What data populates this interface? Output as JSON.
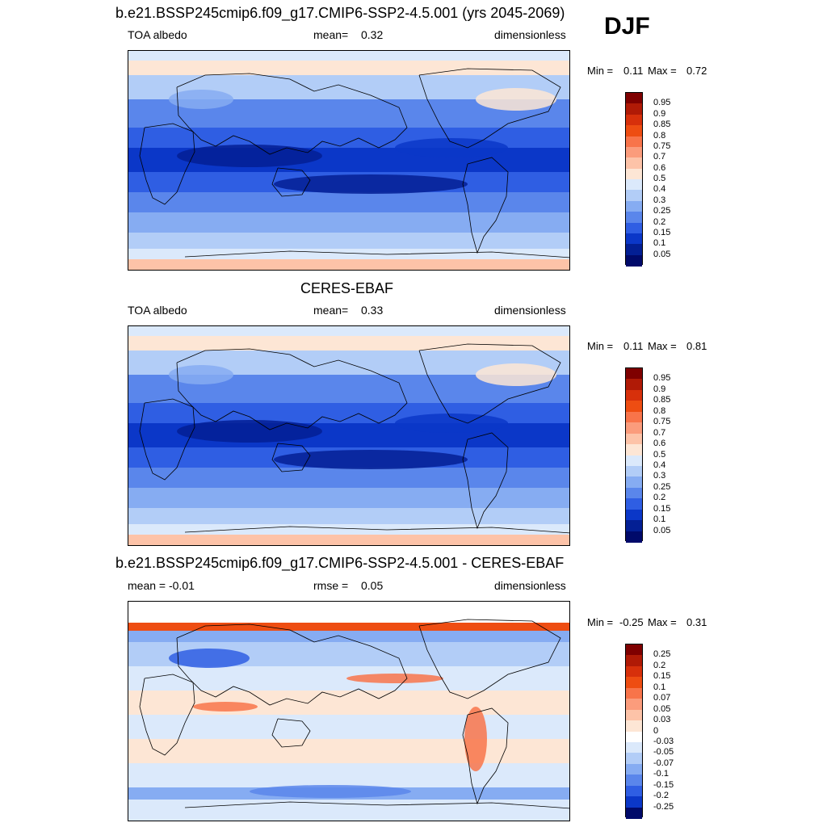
{
  "season": "DJF",
  "panels": [
    {
      "title": "b.e21.BSSP245cmip6.f09_g17.CMIP6-SSP2-4.5.001 (yrs 2045-2069)",
      "left": "TOA albedo",
      "center_label": "mean=",
      "center_value": "0.32",
      "right": "dimensionless",
      "min_label": "Min =",
      "min": "0.11",
      "max_label": "Max =",
      "max": "0.72"
    },
    {
      "title": "CERES-EBAF",
      "left": "TOA albedo",
      "center_label": "mean=",
      "center_value": "0.33",
      "right": "dimensionless",
      "min_label": "Min =",
      "min": "0.11",
      "max_label": "Max =",
      "max": "0.81"
    },
    {
      "title": "b.e21.BSSP245cmip6.f09_g17.CMIP6-SSP2-4.5.001 - CERES-EBAF",
      "left": "mean =  -0.01",
      "center_label": "rmse =",
      "center_value": "0.05",
      "right": "dimensionless",
      "min_label": "Min =",
      "min": "-0.25",
      "max_label": "Max =",
      "max": "0.31"
    }
  ],
  "chart_data": [
    {
      "type": "heatmap",
      "title": "b.e21.BSSP245cmip6.f09_g17.CMIP6-SSP2-4.5.001 (yrs 2045-2069)",
      "variable": "TOA albedo",
      "units": "dimensionless",
      "mean": 0.32,
      "min": 0.11,
      "max": 0.72,
      "colorbar_levels": [
        "0.95",
        "0.9",
        "0.85",
        "0.8",
        "0.75",
        "0.7",
        "0.6",
        "0.5",
        "0.4",
        "0.3",
        "0.25",
        "0.2",
        "0.15",
        "0.1",
        "0.05"
      ],
      "colorbar_colors": [
        "#7f0000",
        "#b01a06",
        "#d7300b",
        "#ee4d12",
        "#f8744a",
        "#fb9c7c",
        "#fdc3a8",
        "#fde6d5",
        "#dbe9fb",
        "#b2cdf7",
        "#86acf2",
        "#5a86eb",
        "#2f5ee3",
        "#0b37c8",
        "#031f94",
        "#000a6a"
      ]
    },
    {
      "type": "heatmap",
      "title": "CERES-EBAF",
      "variable": "TOA albedo",
      "units": "dimensionless",
      "mean": 0.33,
      "min": 0.11,
      "max": 0.81,
      "colorbar_levels": [
        "0.95",
        "0.9",
        "0.85",
        "0.8",
        "0.75",
        "0.7",
        "0.6",
        "0.5",
        "0.4",
        "0.3",
        "0.25",
        "0.2",
        "0.15",
        "0.1",
        "0.05"
      ],
      "colorbar_colors": [
        "#7f0000",
        "#b01a06",
        "#d7300b",
        "#ee4d12",
        "#f8744a",
        "#fb9c7c",
        "#fdc3a8",
        "#fde6d5",
        "#dbe9fb",
        "#b2cdf7",
        "#86acf2",
        "#5a86eb",
        "#2f5ee3",
        "#0b37c8",
        "#031f94",
        "#000a6a"
      ]
    },
    {
      "type": "heatmap",
      "title": "b.e21.BSSP245cmip6.f09_g17.CMIP6-SSP2-4.5.001 - CERES-EBAF",
      "units": "dimensionless",
      "mean": -0.01,
      "rmse": 0.05,
      "min": -0.25,
      "max": 0.31,
      "colorbar_levels": [
        "0.25",
        "0.2",
        "0.15",
        "0.1",
        "0.07",
        "0.05",
        "0.03",
        "0",
        "-0.03",
        "-0.05",
        "-0.07",
        "-0.1",
        "-0.15",
        "-0.2",
        "-0.25"
      ],
      "colorbar_colors": [
        "#7f0000",
        "#b01a06",
        "#d7300b",
        "#ee4d12",
        "#f8744a",
        "#fb9c7c",
        "#fdc3a8",
        "#fde6d5",
        "#ffffff",
        "#dbe9fb",
        "#b2cdf7",
        "#86acf2",
        "#5a86eb",
        "#2f5ee3",
        "#0b37c8",
        "#000a6a"
      ]
    }
  ]
}
